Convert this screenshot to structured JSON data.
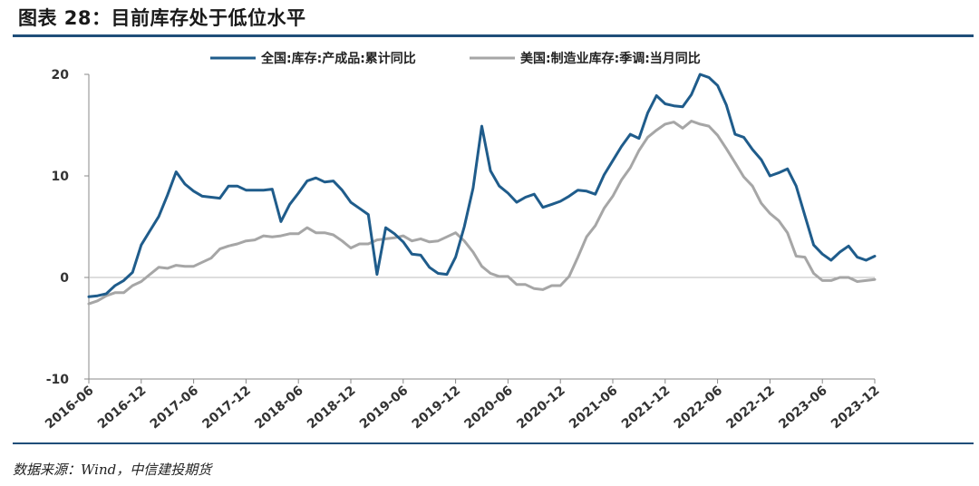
{
  "header": {
    "title": "图表 28：目前库存处于低位水平"
  },
  "footer": {
    "source": "数据来源：Wind，中信建投期货"
  },
  "chart_data": {
    "type": "line",
    "ylim": [
      -10,
      20
    ],
    "yticks": [
      -10,
      0,
      10,
      20
    ],
    "xtick_labels": [
      "2016-06",
      "2016-12",
      "2017-06",
      "2017-12",
      "2018-06",
      "2018-12",
      "2019-06",
      "2019-12",
      "2020-06",
      "2020-12",
      "2021-06",
      "2021-12",
      "2022-06",
      "2022-12",
      "2023-06",
      "2023-12"
    ],
    "x_start": "2016-06",
    "legend_position": "top",
    "grid": false,
    "series": [
      {
        "name": "全国:库存:产成品:累计同比",
        "color": "#1f5c8b",
        "values": [
          -1.9,
          -1.8,
          -1.6,
          -0.8,
          -0.3,
          0.5,
          3.2,
          4.6,
          6.0,
          8.1,
          10.4,
          9.2,
          8.5,
          8.0,
          7.9,
          7.8,
          9.0,
          9.0,
          8.6,
          8.6,
          8.6,
          8.7,
          5.5,
          7.2,
          8.3,
          9.5,
          9.8,
          9.4,
          9.5,
          8.6,
          7.4,
          6.8,
          6.2,
          0.3,
          4.9,
          4.3,
          3.5,
          2.3,
          2.2,
          1.0,
          0.4,
          0.3,
          2.0,
          5.0,
          8.8,
          14.9,
          10.5,
          9.0,
          8.3,
          7.4,
          7.9,
          8.2,
          6.9,
          7.2,
          7.5,
          8.0,
          8.6,
          8.5,
          8.2,
          10.1,
          11.5,
          12.9,
          14.1,
          13.7,
          16.2,
          17.9,
          17.1,
          16.9,
          16.8,
          18.0,
          20.0,
          19.7,
          18.9,
          17.0,
          14.1,
          13.8,
          12.6,
          11.6,
          10.0,
          10.3,
          10.7,
          9.0,
          6.1,
          3.2,
          2.3,
          1.7,
          2.5,
          3.1,
          2.0,
          1.7,
          2.1
        ]
      },
      {
        "name": "美国:制造业库存:季调:当月同比",
        "color": "#a6a6a6",
        "values": [
          -2.6,
          -2.3,
          -1.8,
          -1.5,
          -1.5,
          -0.8,
          -0.4,
          0.3,
          1.0,
          0.9,
          1.2,
          1.1,
          1.1,
          1.5,
          1.9,
          2.8,
          3.1,
          3.3,
          3.6,
          3.7,
          4.1,
          4.0,
          4.1,
          4.3,
          4.3,
          4.9,
          4.4,
          4.4,
          4.2,
          3.6,
          2.9,
          3.3,
          3.3,
          3.7,
          3.8,
          3.9,
          4.1,
          3.6,
          3.8,
          3.5,
          3.6,
          4.0,
          4.4,
          3.6,
          2.5,
          1.1,
          0.4,
          0.1,
          0.1,
          -0.7,
          -0.7,
          -1.1,
          -1.2,
          -0.8,
          -0.8,
          0.1,
          2.0,
          4.0,
          5.1,
          6.8,
          8.0,
          9.6,
          10.8,
          12.5,
          13.8,
          14.5,
          15.1,
          15.3,
          14.7,
          15.4,
          15.1,
          14.9,
          14.0,
          12.7,
          11.3,
          9.9,
          9.0,
          7.3,
          6.3,
          5.6,
          4.4,
          2.1,
          2.0,
          0.4,
          -0.3,
          -0.3,
          0.0,
          0.0,
          -0.4,
          -0.3,
          -0.2
        ]
      }
    ]
  }
}
